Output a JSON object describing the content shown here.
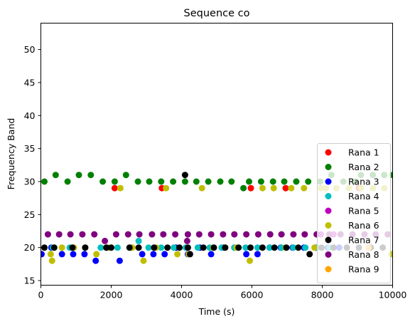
{
  "chart_data": {
    "type": "scatter",
    "title": "Sequence co",
    "xlabel": "Time (s)",
    "ylabel": "Frequency Band",
    "xlim": [
      0,
      10000
    ],
    "ylim": [
      14.3,
      54
    ],
    "x_ticks": [
      0,
      2000,
      4000,
      6000,
      8000,
      10000
    ],
    "x_tick_labels": [
      "0",
      "2000",
      "4000",
      "6000",
      "8000",
      "10000"
    ],
    "y_ticks": [
      15,
      20,
      25,
      30,
      35,
      40,
      45,
      50
    ],
    "y_tick_labels": [
      "15",
      "20",
      "25",
      "30",
      "35",
      "40",
      "45",
      "50"
    ],
    "grid": false,
    "legend_position": "lower-right",
    "series": [
      {
        "name": "Rana 1",
        "color": "#ff0000",
        "points": [
          [
            2100,
            29
          ],
          [
            3440,
            29
          ],
          [
            5970,
            29
          ],
          [
            6960,
            29
          ],
          [
            8100,
            29
          ],
          [
            9040,
            29
          ]
        ]
      },
      {
        "name": "Rana 2",
        "color": "#008000",
        "points": [
          [
            100,
            30
          ],
          [
            420,
            31
          ],
          [
            760,
            30
          ],
          [
            1080,
            31
          ],
          [
            1420,
            31
          ],
          [
            1760,
            30
          ],
          [
            2100,
            30
          ],
          [
            2420,
            31
          ],
          [
            2760,
            30
          ],
          [
            3080,
            30
          ],
          [
            3420,
            30
          ],
          [
            3760,
            30
          ],
          [
            4100,
            30
          ],
          [
            4420,
            30
          ],
          [
            4760,
            30
          ],
          [
            5100,
            30
          ],
          [
            5420,
            30
          ],
          [
            5760,
            29
          ],
          [
            5920,
            30
          ],
          [
            6260,
            30
          ],
          [
            6600,
            30
          ],
          [
            6920,
            30
          ],
          [
            7260,
            30
          ],
          [
            7600,
            30
          ],
          [
            7940,
            30
          ],
          [
            8260,
            31
          ],
          [
            8600,
            30
          ],
          [
            8940,
            30
          ],
          [
            9100,
            31
          ],
          [
            9440,
            31
          ],
          [
            9760,
            31
          ],
          [
            10000,
            31
          ]
        ]
      },
      {
        "name": "Rana 3",
        "color": "#0000ff",
        "points": [
          [
            20,
            19
          ],
          [
            300,
            20
          ],
          [
            600,
            19
          ],
          [
            920,
            19
          ],
          [
            1240,
            19
          ],
          [
            1560,
            18
          ],
          [
            1880,
            20
          ],
          [
            2240,
            18
          ],
          [
            2560,
            20
          ],
          [
            2880,
            19
          ],
          [
            3200,
            19
          ],
          [
            3520,
            19
          ],
          [
            3840,
            20
          ],
          [
            4180,
            19
          ],
          [
            4520,
            20
          ],
          [
            4840,
            19
          ],
          [
            5180,
            20
          ],
          [
            5500,
            20
          ],
          [
            5840,
            19
          ],
          [
            6160,
            19
          ],
          [
            6500,
            20
          ],
          [
            6820,
            20
          ],
          [
            7160,
            20
          ],
          [
            7480,
            20
          ],
          [
            7820,
            20
          ],
          [
            8160,
            20
          ],
          [
            8480,
            20
          ]
        ]
      },
      {
        "name": "Rana 4",
        "color": "#00bfbf",
        "points": [
          [
            340,
            20
          ],
          [
            820,
            20
          ],
          [
            1260,
            20
          ],
          [
            1700,
            20
          ],
          [
            2180,
            20
          ],
          [
            2580,
            20
          ],
          [
            2780,
            21
          ],
          [
            3060,
            20
          ],
          [
            3420,
            20
          ],
          [
            3780,
            20
          ],
          [
            4120,
            20
          ],
          [
            4460,
            20
          ],
          [
            4800,
            20
          ],
          [
            5140,
            20
          ],
          [
            5500,
            20
          ],
          [
            5820,
            20
          ],
          [
            6160,
            20
          ],
          [
            6500,
            20
          ],
          [
            6840,
            20
          ],
          [
            7180,
            20
          ],
          [
            7520,
            20
          ],
          [
            7860,
            20
          ],
          [
            8200,
            20
          ]
        ]
      },
      {
        "name": "Rana 5",
        "color": "#bf00bf",
        "points": [
          [
            7960,
            22
          ],
          [
            8320,
            22
          ]
        ]
      },
      {
        "name": "Rana 6",
        "color": "#bfbf00",
        "points": [
          [
            280,
            19
          ],
          [
            320,
            18
          ],
          [
            600,
            20
          ],
          [
            940,
            20
          ],
          [
            1260,
            20
          ],
          [
            1580,
            19
          ],
          [
            1920,
            20
          ],
          [
            2260,
            29
          ],
          [
            2600,
            20
          ],
          [
            2920,
            18
          ],
          [
            3280,
            20
          ],
          [
            3560,
            29
          ],
          [
            3880,
            19
          ],
          [
            4200,
            19
          ],
          [
            4580,
            29
          ],
          [
            4900,
            20
          ],
          [
            5240,
            20
          ],
          [
            5560,
            20
          ],
          [
            5940,
            18
          ],
          [
            6300,
            29
          ],
          [
            6620,
            29
          ],
          [
            6960,
            20
          ],
          [
            7120,
            29
          ],
          [
            7480,
            29
          ],
          [
            7780,
            20
          ],
          [
            7960,
            29
          ],
          [
            8100,
            29
          ],
          [
            8400,
            29
          ],
          [
            8760,
            29
          ],
          [
            9100,
            29
          ],
          [
            9440,
            29
          ],
          [
            9760,
            29
          ],
          [
            9960,
            19
          ]
        ]
      },
      {
        "name": "Rana 7",
        "color": "#000000",
        "points": [
          [
            100,
            20
          ],
          [
            380,
            20
          ],
          [
            900,
            20
          ],
          [
            1260,
            20
          ],
          [
            1860,
            20
          ],
          [
            2000,
            20
          ],
          [
            2520,
            20
          ],
          [
            2780,
            20
          ],
          [
            3220,
            20
          ],
          [
            3600,
            20
          ],
          [
            3940,
            20
          ],
          [
            4100,
            31
          ],
          [
            4180,
            20
          ],
          [
            4240,
            19
          ],
          [
            4620,
            20
          ],
          [
            4920,
            20
          ],
          [
            5240,
            20
          ],
          [
            5620,
            20
          ],
          [
            5960,
            20
          ],
          [
            6300,
            20
          ],
          [
            6640,
            20
          ],
          [
            6980,
            20
          ],
          [
            7320,
            20
          ],
          [
            7640,
            19
          ],
          [
            7980,
            20
          ],
          [
            8320,
            20
          ],
          [
            8700,
            20
          ],
          [
            9040,
            20
          ],
          [
            9380,
            20
          ],
          [
            9720,
            20
          ]
        ]
      },
      {
        "name": "Rana 8",
        "color": "#800080",
        "points": [
          [
            200,
            22
          ],
          [
            520,
            22
          ],
          [
            840,
            22
          ],
          [
            1180,
            22
          ],
          [
            1520,
            22
          ],
          [
            1820,
            21
          ],
          [
            2140,
            22
          ],
          [
            2480,
            22
          ],
          [
            2800,
            22
          ],
          [
            3160,
            22
          ],
          [
            3480,
            22
          ],
          [
            3820,
            22
          ],
          [
            4160,
            21
          ],
          [
            4180,
            22
          ],
          [
            4500,
            22
          ],
          [
            4840,
            22
          ],
          [
            5180,
            22
          ],
          [
            5500,
            22
          ],
          [
            5840,
            22
          ],
          [
            6180,
            22
          ],
          [
            6520,
            22
          ],
          [
            6840,
            22
          ],
          [
            7180,
            22
          ],
          [
            7500,
            22
          ],
          [
            7840,
            22
          ],
          [
            8200,
            22
          ],
          [
            8520,
            22
          ],
          [
            8860,
            22
          ],
          [
            9200,
            22
          ],
          [
            9520,
            22
          ],
          [
            9860,
            22
          ]
        ]
      },
      {
        "name": "Rana 9",
        "color": "#ffa500",
        "points": [
          [
            9320,
            20
          ]
        ]
      }
    ]
  }
}
